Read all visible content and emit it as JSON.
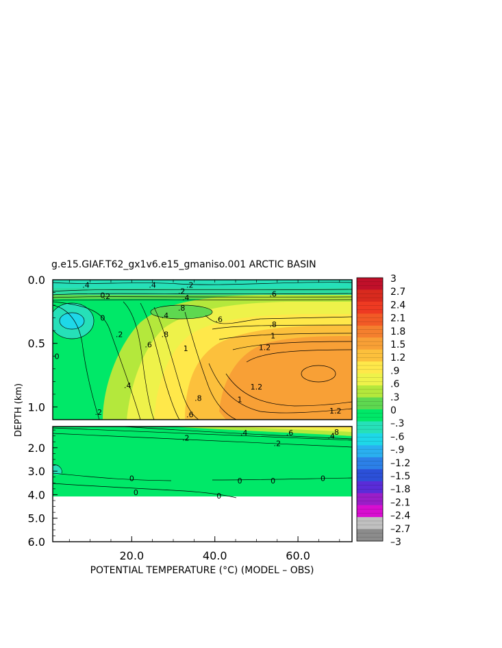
{
  "chart_data": {
    "type": "heatmap",
    "title": "g.e15.GIAF.T62_gx1v6.e15_gmaniso.001 ARCTIC BASIN",
    "xlabel": "POTENTIAL TEMPERATURE (°C) (MODEL – OBS)",
    "ylabel": "DEPTH (km)",
    "xlim": [
      1,
      73
    ],
    "x_ticks": [
      "20.0",
      "40.0",
      "60.0"
    ],
    "x_tick_values": [
      20,
      40,
      60
    ],
    "upper_panel": {
      "ylim": [
        0,
        1.1
      ],
      "y_ticks": [
        "0.0",
        "0.5",
        "1.0"
      ],
      "y_tick_values": [
        0,
        0.5,
        1.0
      ]
    },
    "lower_panel": {
      "ylim": [
        1.1,
        6.0
      ],
      "y_ticks": [
        "2.0",
        "3.0",
        "4.0",
        "5.0",
        "6.0"
      ],
      "y_tick_values": [
        2,
        3,
        4,
        5,
        6
      ]
    },
    "colorbar": {
      "labels": [
        "3",
        "2.7",
        "2.4",
        "2.1",
        "1.8",
        "1.5",
        "1.2",
        ".9",
        ".6",
        ".3",
        "0",
        "–.3",
        "–.6",
        "–.9",
        "–1.2",
        "–1.5",
        "–1.8",
        "–2.1",
        "–2.4",
        "–2.7",
        "–3"
      ],
      "colors": [
        "#c0102a",
        "#d82a1e",
        "#ee3a22",
        "#f25a26",
        "#f47f2e",
        "#f8a036",
        "#fcc03c",
        "#ffe84a",
        "#eef24a",
        "#b4e83c",
        "#5ed850",
        "#00e868",
        "#26e0b8",
        "#1ed8e8",
        "#2ab0f0",
        "#2c80e8",
        "#2c50d8",
        "#5a2cd8",
        "#9a1ec8",
        "#d80ed0",
        "#c0c0c0",
        "#8c8c8c"
      ]
    },
    "contour_labels": [
      {
        "text": ".4",
        "x": 9,
        "y": 0.04
      },
      {
        "text": ".4",
        "x": 25,
        "y": 0.04
      },
      {
        "text": ".2",
        "x": 34,
        "y": 0.04
      },
      {
        "text": ".2",
        "x": 14,
        "y": 0.13
      },
      {
        "text": "0",
        "x": 13,
        "y": 0.12
      },
      {
        "text": ".2",
        "x": 32,
        "y": 0.09
      },
      {
        "text": ".4",
        "x": 33,
        "y": 0.14
      },
      {
        "text": ".6",
        "x": 54,
        "y": 0.11
      },
      {
        "text": "0",
        "x": 13,
        "y": 0.3
      },
      {
        "text": ".4",
        "x": 28,
        "y": 0.28
      },
      {
        "text": ".6",
        "x": 41,
        "y": 0.31
      },
      {
        "text": ".8",
        "x": 32,
        "y": 0.22
      },
      {
        "text": ".8",
        "x": 54,
        "y": 0.35
      },
      {
        "text": ".2",
        "x": 17,
        "y": 0.43
      },
      {
        "text": "1",
        "x": 54,
        "y": 0.44
      },
      {
        "text": "1.2",
        "x": 52,
        "y": 0.53
      },
      {
        "text": "0",
        "x": 2,
        "y": 0.6
      },
      {
        "text": ".6",
        "x": 24,
        "y": 0.51
      },
      {
        "text": ".8",
        "x": 28,
        "y": 0.43
      },
      {
        "text": "1",
        "x": 33,
        "y": 0.54
      },
      {
        "text": ".4",
        "x": 19,
        "y": 0.83
      },
      {
        "text": "1.2",
        "x": 50,
        "y": 0.84
      },
      {
        "text": ".8",
        "x": 36,
        "y": 0.93
      },
      {
        "text": "1",
        "x": 46,
        "y": 0.94
      },
      {
        "text": ".2",
        "x": 12,
        "y": 1.04
      },
      {
        "text": ".6",
        "x": 34,
        "y": 1.06
      },
      {
        "text": "1.2",
        "x": 69,
        "y": 1.03
      },
      {
        "text": ".4",
        "x": 47,
        "y": 1.36
      },
      {
        "text": ".6",
        "x": 58,
        "y": 1.36
      },
      {
        "text": ".8",
        "x": 69,
        "y": 1.33
      },
      {
        "text": ".2",
        "x": 33,
        "y": 1.58
      },
      {
        "text": ".2",
        "x": 55,
        "y": 1.82
      },
      {
        "text": ".4",
        "x": 68,
        "y": 1.5
      },
      {
        "text": "0",
        "x": 20,
        "y": 3.3
      },
      {
        "text": "0",
        "x": 46,
        "y": 3.4
      },
      {
        "text": "0",
        "x": 54,
        "y": 3.4
      },
      {
        "text": "0",
        "x": 66,
        "y": 3.3
      },
      {
        "text": "0",
        "x": 21,
        "y": 3.9
      },
      {
        "text": "0",
        "x": 41,
        "y": 4.05
      }
    ]
  }
}
